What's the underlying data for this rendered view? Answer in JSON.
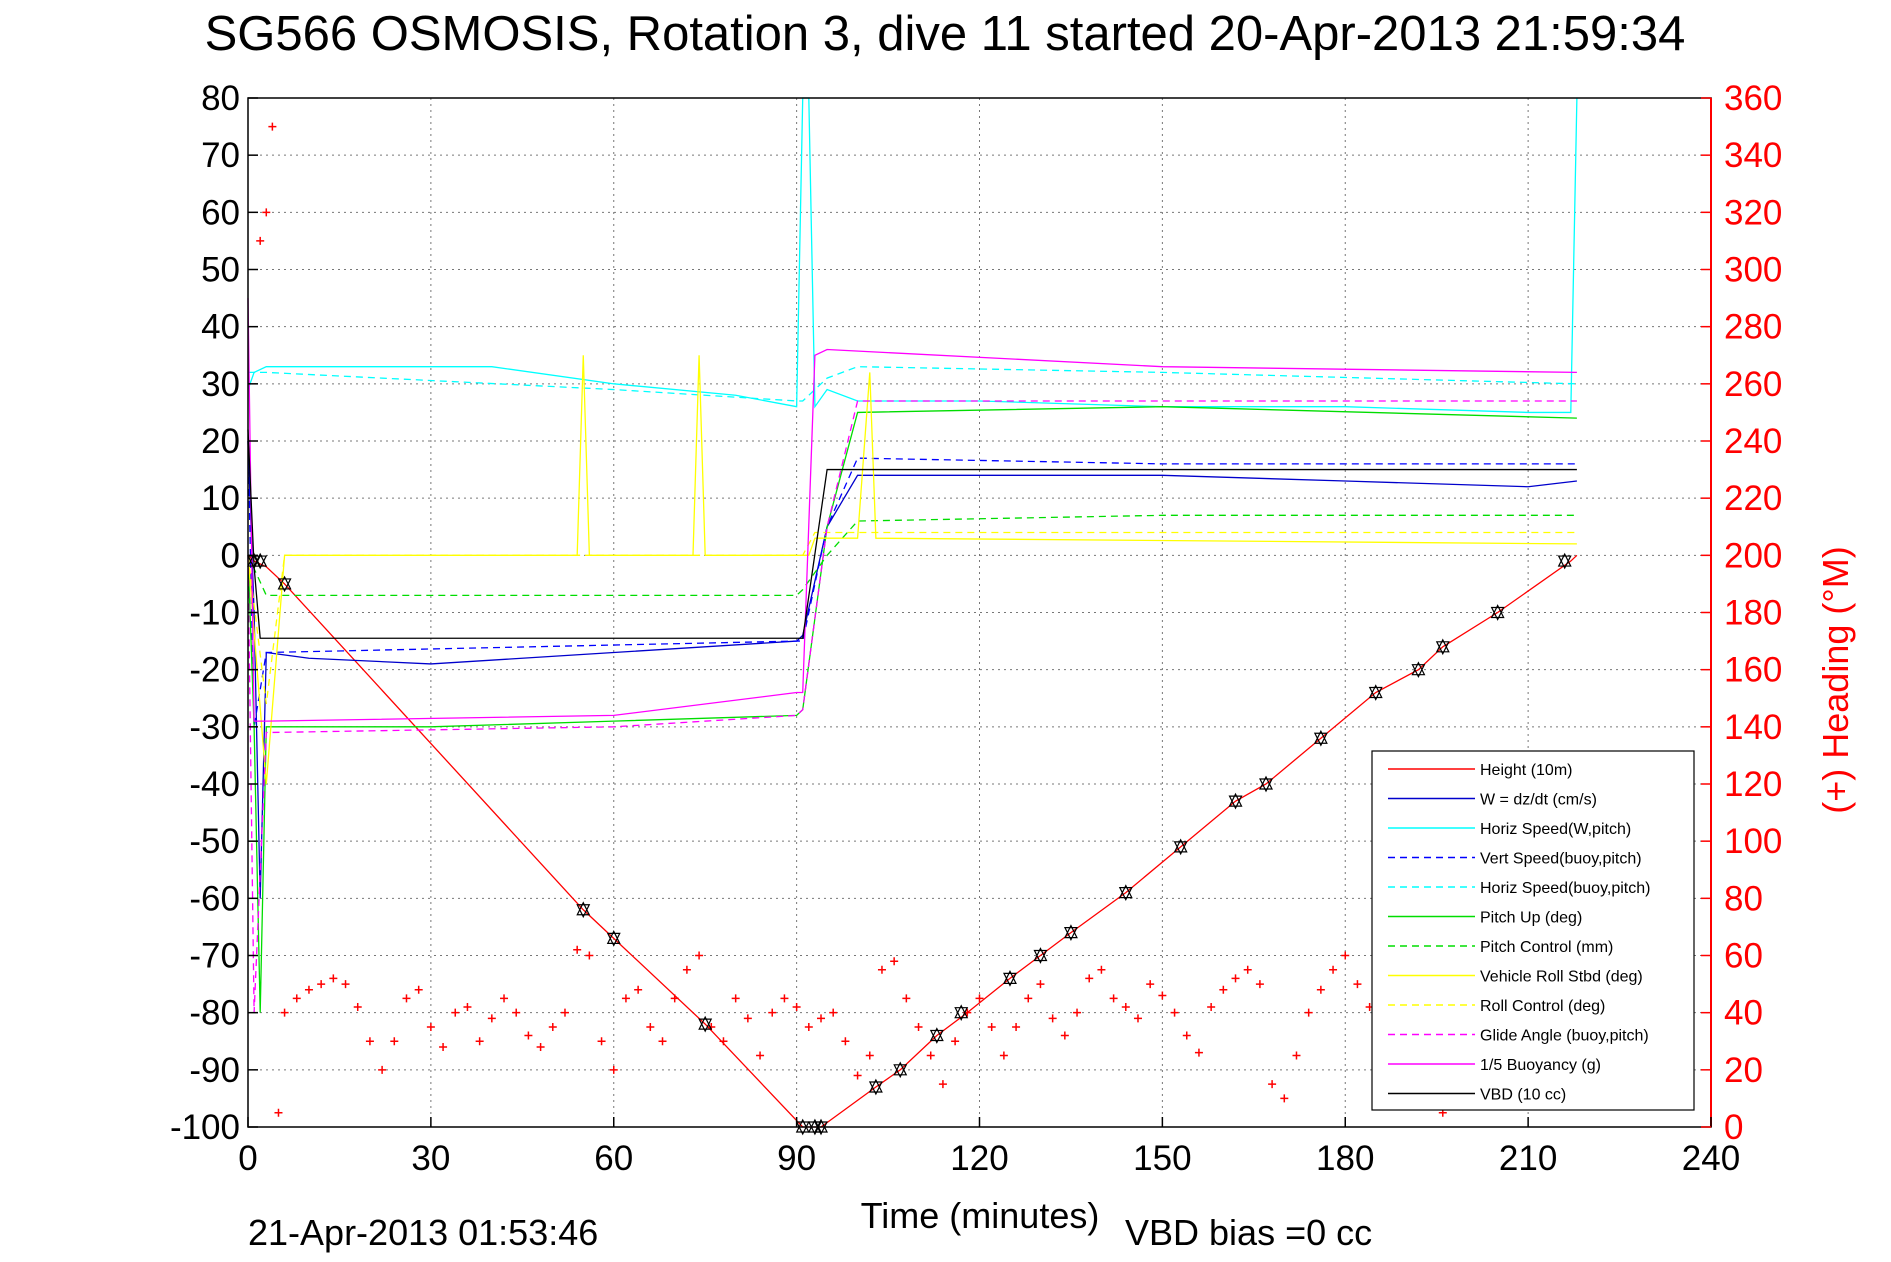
{
  "chart_data": {
    "type": "line",
    "title": "SG566 OSMOSIS, Rotation 3, dive 11 started 20-Apr-2013 21:59:34",
    "xlabel": "Time (minutes)",
    "ylabel_left": "",
    "ylabel_right": "(+) Heading (°M)",
    "xlim": [
      0,
      240
    ],
    "ylim_left": [
      -100,
      80
    ],
    "ylim_right": [
      0,
      360
    ],
    "x_ticks": [
      "0",
      "30",
      "60",
      "90",
      "120",
      "150",
      "180",
      "210",
      "240"
    ],
    "y_ticks_left": [
      "80",
      "70",
      "60",
      "50",
      "40",
      "30",
      "20",
      "10",
      "0",
      "-10",
      "-20",
      "-30",
      "-40",
      "-50",
      "-60",
      "-70",
      "-80",
      "-90",
      "-100"
    ],
    "y_ticks_right": [
      "360",
      "340",
      "320",
      "300",
      "280",
      "260",
      "240",
      "220",
      "200",
      "180",
      "160",
      "140",
      "120",
      "100",
      "80",
      "60",
      "40",
      "20",
      "0"
    ],
    "footer_left": "21-Apr-2013 01:53:46",
    "footer_right": "VBD bias =0 cc",
    "grid": true,
    "legend_position": "bottom-right",
    "series": [
      {
        "name": "Height (10m)",
        "color": "#ff0000",
        "style": "solid",
        "x": [
          0,
          1,
          3,
          6,
          55,
          60,
          75,
          91,
          94,
          103,
          107,
          113,
          118,
          125,
          130,
          135,
          144,
          153,
          162,
          167,
          176,
          185,
          192,
          196,
          205,
          217,
          218
        ],
        "y": [
          0,
          -1,
          -2,
          -5,
          -62,
          -67,
          -82,
          -100,
          -100,
          -93,
          -90,
          -84,
          -80,
          -74,
          -70,
          -66,
          -59,
          -51,
          -43,
          -40,
          -32,
          -24,
          -20,
          -16,
          -10,
          -1,
          0
        ]
      },
      {
        "name": "W = dz/dt (cm/s)",
        "color": "#0000cc",
        "style": "solid",
        "x": [
          0,
          1,
          2,
          3,
          10,
          30,
          60,
          90,
          91,
          95,
          100,
          120,
          150,
          180,
          210,
          218
        ],
        "y": [
          20,
          -10,
          -60,
          -17,
          -18,
          -19,
          -17,
          -15,
          -14,
          5,
          14,
          14,
          14,
          13,
          12,
          13
        ]
      },
      {
        "name": "Horiz Speed(W,pitch)",
        "color": "#00ffff",
        "style": "solid",
        "x": [
          0,
          1,
          3,
          20,
          40,
          60,
          80,
          90,
          91,
          92,
          93,
          95,
          100,
          120,
          150,
          180,
          210,
          217,
          218
        ],
        "y": [
          29,
          32,
          33,
          33,
          33,
          30,
          28,
          26,
          80,
          80,
          26,
          29,
          27,
          27,
          26,
          26,
          25,
          25,
          80
        ]
      },
      {
        "name": "Vert Speed(buoy,pitch)",
        "color": "#0000ff",
        "style": "dashed",
        "x": [
          0,
          1,
          3,
          90,
          91,
          95,
          100,
          150,
          218
        ],
        "y": [
          20,
          -30,
          -17,
          -15,
          -15,
          5,
          17,
          16,
          16
        ]
      },
      {
        "name": "Horiz Speed(buoy,pitch)",
        "color": "#00ffff",
        "style": "dashed",
        "x": [
          0,
          3,
          60,
          90,
          91,
          95,
          100,
          150,
          218
        ],
        "y": [
          32,
          32,
          29,
          27,
          27,
          31,
          33,
          32,
          30
        ]
      },
      {
        "name": "Pitch Up (deg)",
        "color": "#00dd00",
        "style": "solid",
        "x": [
          0,
          1,
          2,
          3,
          5,
          30,
          60,
          90,
          91,
          95,
          100,
          150,
          218
        ],
        "y": [
          0,
          -30,
          -80,
          -30,
          -30,
          -30,
          -29,
          -28,
          -27,
          5,
          25,
          26,
          24
        ]
      },
      {
        "name": "Pitch Control (mm)",
        "color": "#00dd00",
        "style": "dashed",
        "x": [
          0,
          3,
          90,
          91,
          95,
          100,
          150,
          218
        ],
        "y": [
          0,
          -7,
          -7,
          -6,
          0,
          6,
          7,
          7
        ]
      },
      {
        "name": "Vehicle Roll Stbd (deg)",
        "color": "#ffff00",
        "style": "solid",
        "x": [
          0,
          3,
          6,
          54,
          55,
          56,
          73,
          74,
          75,
          91,
          92,
          93,
          100,
          102,
          103,
          218
        ],
        "y": [
          0,
          -40,
          0,
          0,
          35,
          0,
          0,
          35,
          0,
          0,
          0,
          3,
          3,
          32,
          3,
          2
        ]
      },
      {
        "name": "Roll Control (deg)",
        "color": "#ffff00",
        "style": "dashed",
        "x": [
          0,
          3,
          6,
          60,
          91,
          93,
          100,
          150,
          218
        ],
        "y": [
          0,
          -26,
          0,
          0,
          0,
          4,
          4,
          4,
          4
        ]
      },
      {
        "name": "Glide Angle (buoy,pitch)",
        "color": "#ff00ff",
        "style": "dashed",
        "x": [
          0,
          1,
          3,
          60,
          90,
          91,
          95,
          100,
          150,
          218
        ],
        "y": [
          0,
          -80,
          -31,
          -30,
          -28,
          -27,
          5,
          27,
          27,
          27
        ]
      },
      {
        "name": "1/5 Buoyancy (g)",
        "color": "#ff00ff",
        "style": "solid",
        "x": [
          0,
          1,
          3,
          60,
          90,
          91,
          93,
          95,
          150,
          218
        ],
        "y": [
          45,
          -29,
          -29,
          -28,
          -24,
          -24,
          35,
          36,
          33,
          32
        ]
      },
      {
        "name": "VBD (10 cc)",
        "color": "#000000",
        "style": "solid",
        "x": [
          0,
          1,
          2,
          90,
          91,
          95,
          218
        ],
        "y": [
          22,
          -2,
          -14.5,
          -14.5,
          -14.5,
          15,
          15
        ]
      }
    ],
    "heading_points": {
      "name": "(+) Heading",
      "color": "#ff0000",
      "marker": "+",
      "axis": "right",
      "x": [
        2,
        3,
        4,
        5,
        6,
        8,
        10,
        12,
        14,
        16,
        18,
        20,
        22,
        24,
        26,
        28,
        30,
        32,
        34,
        36,
        38,
        40,
        42,
        44,
        46,
        48,
        50,
        52,
        54,
        56,
        58,
        60,
        62,
        64,
        66,
        68,
        70,
        72,
        74,
        76,
        78,
        80,
        82,
        84,
        86,
        88,
        90,
        92,
        94,
        96,
        98,
        100,
        102,
        104,
        106,
        108,
        110,
        112,
        114,
        116,
        118,
        120,
        122,
        124,
        126,
        128,
        130,
        132,
        134,
        136,
        138,
        140,
        142,
        144,
        146,
        148,
        150,
        152,
        154,
        156,
        158,
        160,
        162,
        164,
        166,
        168,
        170,
        172,
        174,
        176,
        178,
        180,
        182,
        184,
        186,
        188,
        190,
        192,
        194,
        196
      ],
      "y": [
        310,
        320,
        350,
        5,
        40,
        45,
        48,
        50,
        52,
        50,
        42,
        30,
        20,
        30,
        45,
        48,
        35,
        28,
        40,
        42,
        30,
        38,
        45,
        40,
        32,
        28,
        35,
        40,
        62,
        60,
        30,
        20,
        45,
        48,
        35,
        30,
        45,
        55,
        60,
        35,
        30,
        45,
        38,
        25,
        40,
        45,
        42,
        35,
        38,
        40,
        30,
        18,
        25,
        55,
        58,
        45,
        35,
        25,
        15,
        30,
        40,
        45,
        35,
        25,
        35,
        45,
        50,
        38,
        32,
        40,
        52,
        55,
        45,
        42,
        38,
        50,
        46,
        40,
        32,
        26,
        42,
        48,
        52,
        55,
        50,
        15,
        10,
        25,
        40,
        48,
        55,
        60,
        50,
        42,
        40,
        38,
        42,
        30,
        10,
        5
      ]
    },
    "markers": {
      "name": "data points",
      "color": "#000000",
      "marker": "triangle",
      "x": [
        1,
        2,
        6,
        55,
        60,
        75,
        91,
        93,
        94,
        103,
        107,
        113,
        117,
        125,
        130,
        135,
        144,
        153,
        162,
        167,
        176,
        185,
        192,
        196,
        205,
        216
      ],
      "y": [
        -1,
        -1,
        -5,
        -62,
        -67,
        -82,
        -100,
        -100,
        -100,
        -93,
        -90,
        -84,
        -80,
        -74,
        -70,
        -66,
        -59,
        -51,
        -43,
        -40,
        -32,
        -24,
        -20,
        -16,
        -10,
        -1
      ]
    }
  }
}
